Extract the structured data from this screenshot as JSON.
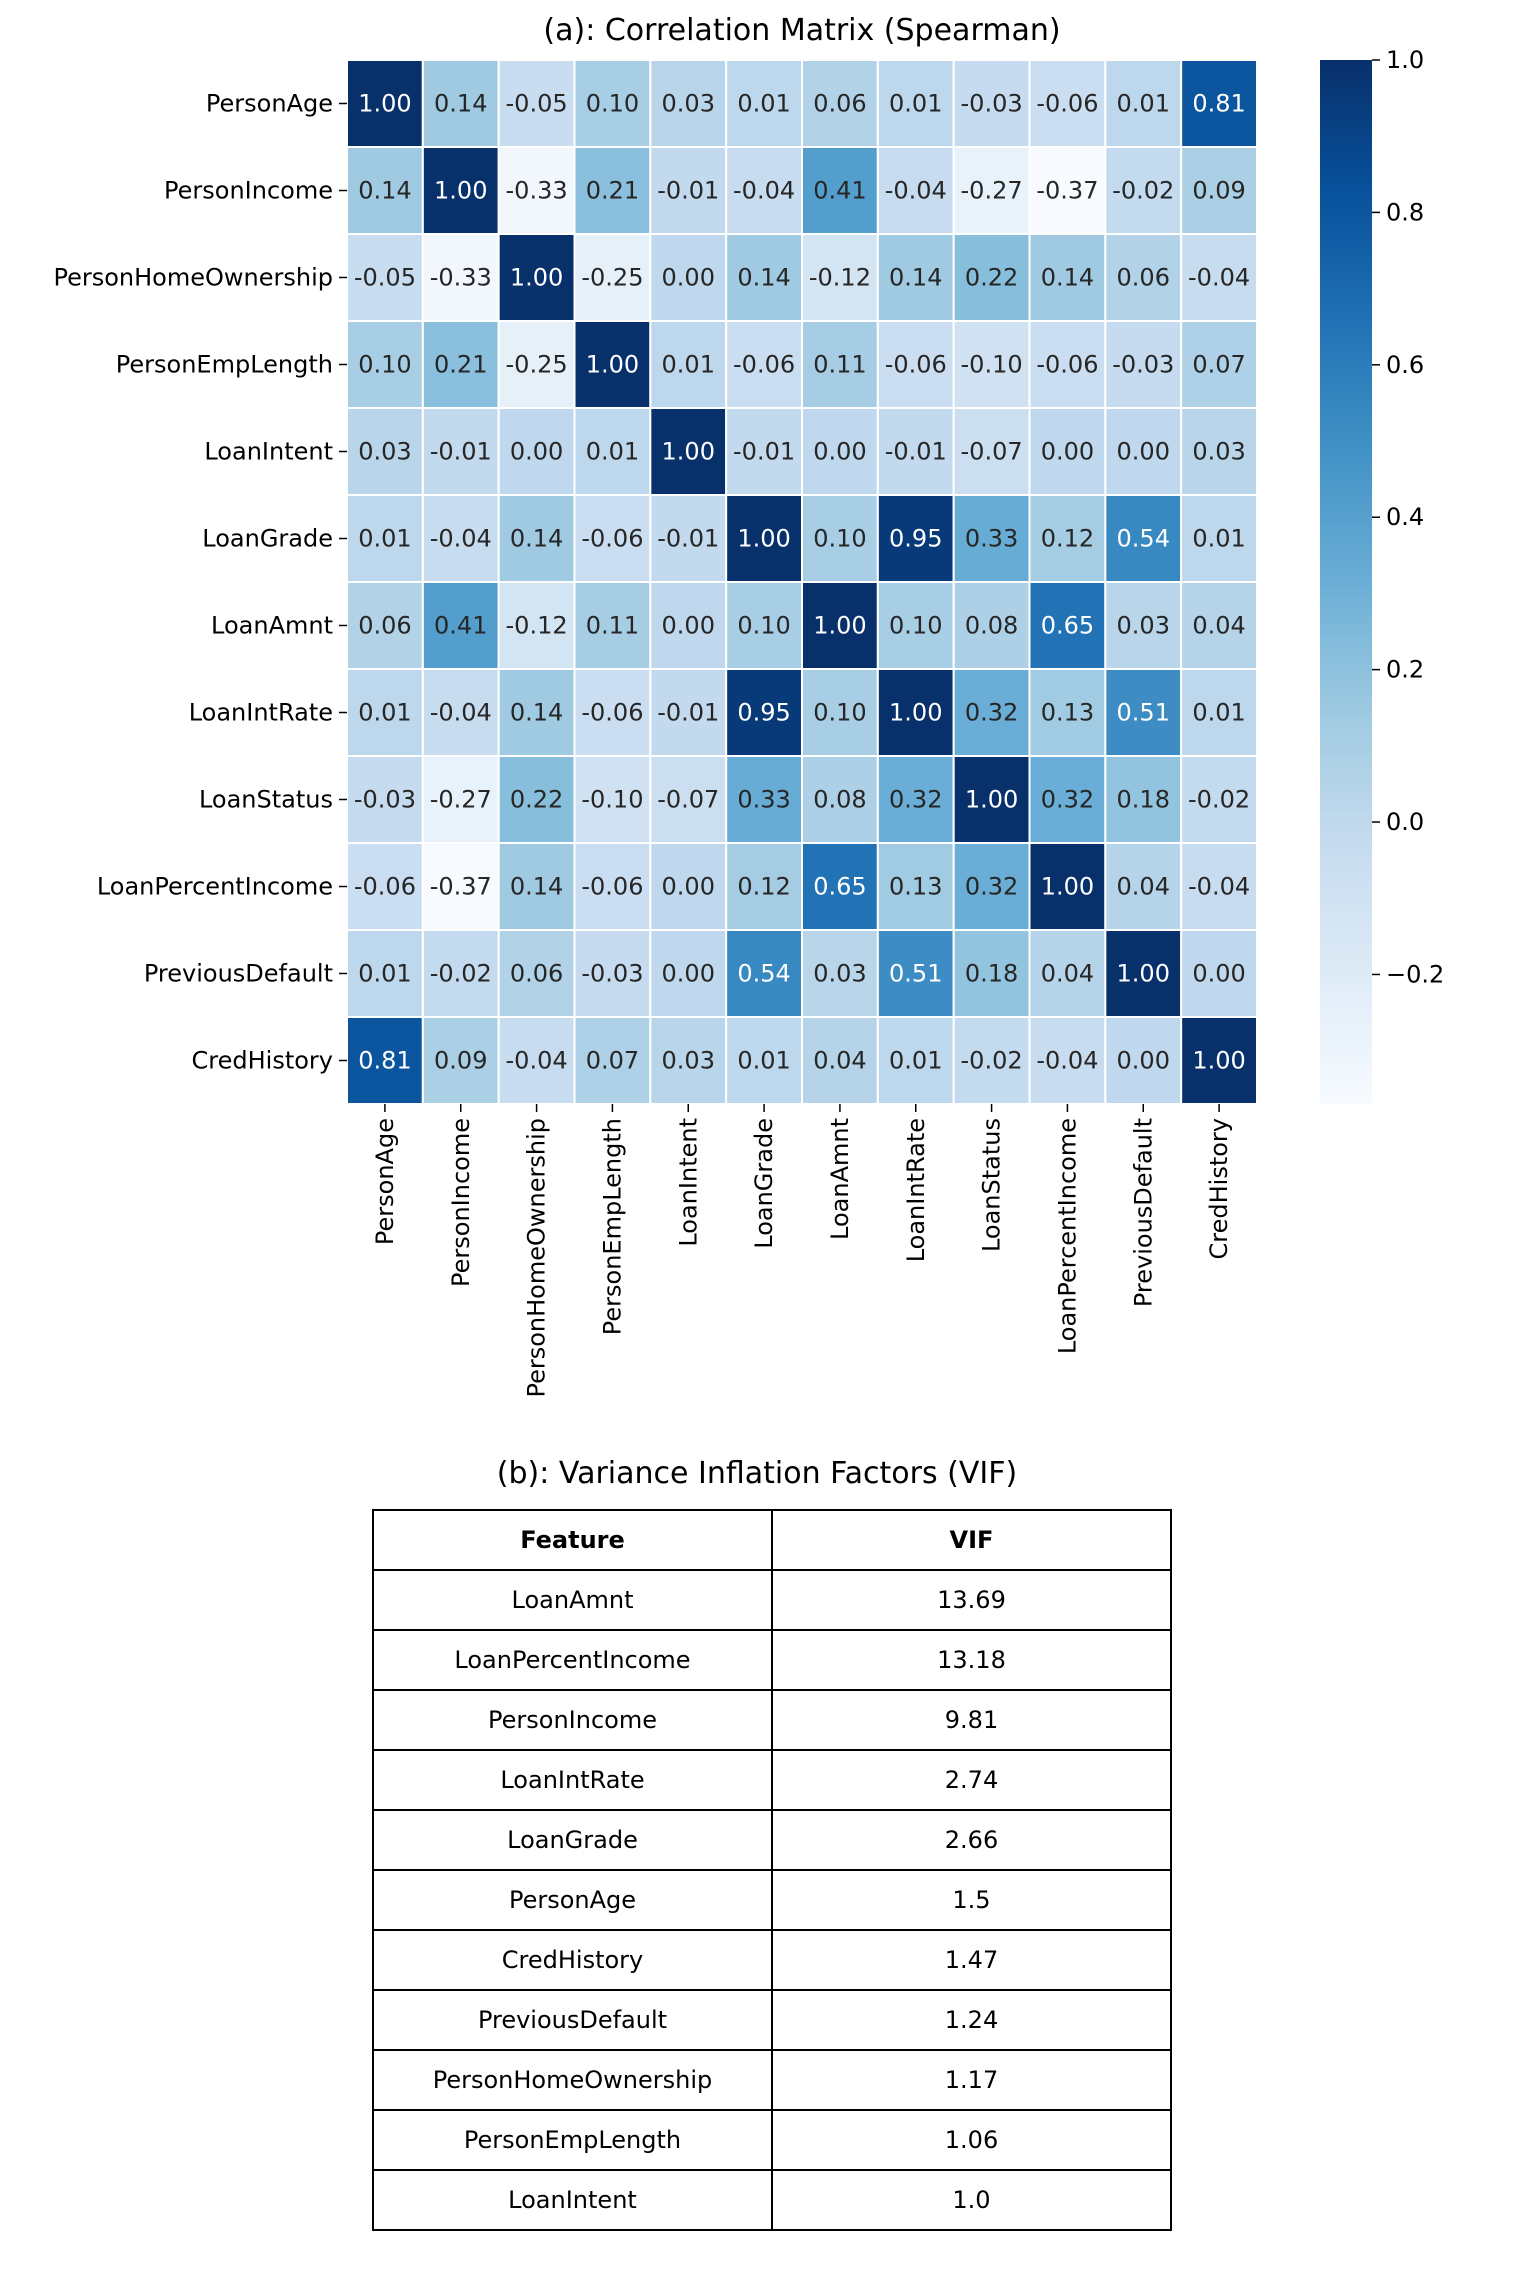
{
  "chart_data": [
    {
      "type": "heatmap",
      "title": "(a): Correlation Matrix (Spearman)",
      "labels": [
        "PersonAge",
        "PersonIncome",
        "PersonHomeOwnership",
        "PersonEmpLength",
        "LoanIntent",
        "LoanGrade",
        "LoanAmnt",
        "LoanIntRate",
        "LoanStatus",
        "LoanPercentIncome",
        "PreviousDefault",
        "CredHistory"
      ],
      "values": [
        [
          1.0,
          0.14,
          -0.05,
          0.1,
          0.03,
          0.01,
          0.06,
          0.01,
          -0.03,
          -0.06,
          0.01,
          0.81
        ],
        [
          0.14,
          1.0,
          -0.33,
          0.21,
          -0.01,
          -0.04,
          0.41,
          -0.04,
          -0.27,
          -0.37,
          -0.02,
          0.09
        ],
        [
          -0.05,
          -0.33,
          1.0,
          -0.25,
          -0.0,
          0.14,
          -0.12,
          0.14,
          0.22,
          0.14,
          0.06,
          -0.04
        ],
        [
          0.1,
          0.21,
          -0.25,
          1.0,
          0.01,
          -0.06,
          0.11,
          -0.06,
          -0.1,
          -0.06,
          -0.03,
          0.07
        ],
        [
          0.03,
          -0.01,
          -0.0,
          0.01,
          1.0,
          -0.01,
          -0.0,
          -0.01,
          -0.07,
          0.0,
          -0.0,
          0.03
        ],
        [
          0.01,
          -0.04,
          0.14,
          -0.06,
          -0.01,
          1.0,
          0.1,
          0.95,
          0.33,
          0.12,
          0.54,
          0.01
        ],
        [
          0.06,
          0.41,
          -0.12,
          0.11,
          -0.0,
          0.1,
          1.0,
          0.1,
          0.08,
          0.65,
          0.03,
          0.04
        ],
        [
          0.01,
          -0.04,
          0.14,
          -0.06,
          -0.01,
          0.95,
          0.1,
          1.0,
          0.32,
          0.13,
          0.51,
          0.01
        ],
        [
          -0.03,
          -0.27,
          0.22,
          -0.1,
          -0.07,
          0.33,
          0.08,
          0.32,
          1.0,
          0.32,
          0.18,
          -0.02
        ],
        [
          -0.06,
          -0.37,
          0.14,
          -0.06,
          0.0,
          0.12,
          0.65,
          0.13,
          0.32,
          1.0,
          0.04,
          -0.04
        ],
        [
          0.01,
          -0.02,
          0.06,
          -0.03,
          -0.0,
          0.54,
          0.03,
          0.51,
          0.18,
          0.04,
          1.0,
          0.0
        ],
        [
          0.81,
          0.09,
          -0.04,
          0.07,
          0.03,
          0.01,
          0.04,
          0.01,
          -0.02,
          -0.04,
          0.0,
          1.0
        ]
      ],
      "colormap": "Blues",
      "vmin": -0.37,
      "vmax": 1.0,
      "colorbar_ticks": [
        1.0,
        0.8,
        0.6,
        0.4,
        0.2,
        0.0,
        -0.2
      ],
      "colorbar_tick_labels": [
        "1.0",
        "0.8",
        "0.6",
        "0.4",
        "0.2",
        "0.0",
        "−0.2"
      ],
      "annotate": true
    },
    {
      "type": "table",
      "title": "(b): Variance Inflation Factors (VIF)",
      "columns": [
        "Feature",
        "VIF"
      ],
      "rows": [
        [
          "LoanAmnt",
          "13.69"
        ],
        [
          "LoanPercentIncome",
          "13.18"
        ],
        [
          "PersonIncome",
          "9.81"
        ],
        [
          "LoanIntRate",
          "2.74"
        ],
        [
          "LoanGrade",
          "2.66"
        ],
        [
          "PersonAge",
          "1.5"
        ],
        [
          "CredHistory",
          "1.47"
        ],
        [
          "PreviousDefault",
          "1.24"
        ],
        [
          "PersonHomeOwnership",
          "1.17"
        ],
        [
          "PersonEmpLength",
          "1.06"
        ],
        [
          "LoanIntent",
          "1.0"
        ]
      ]
    }
  ]
}
